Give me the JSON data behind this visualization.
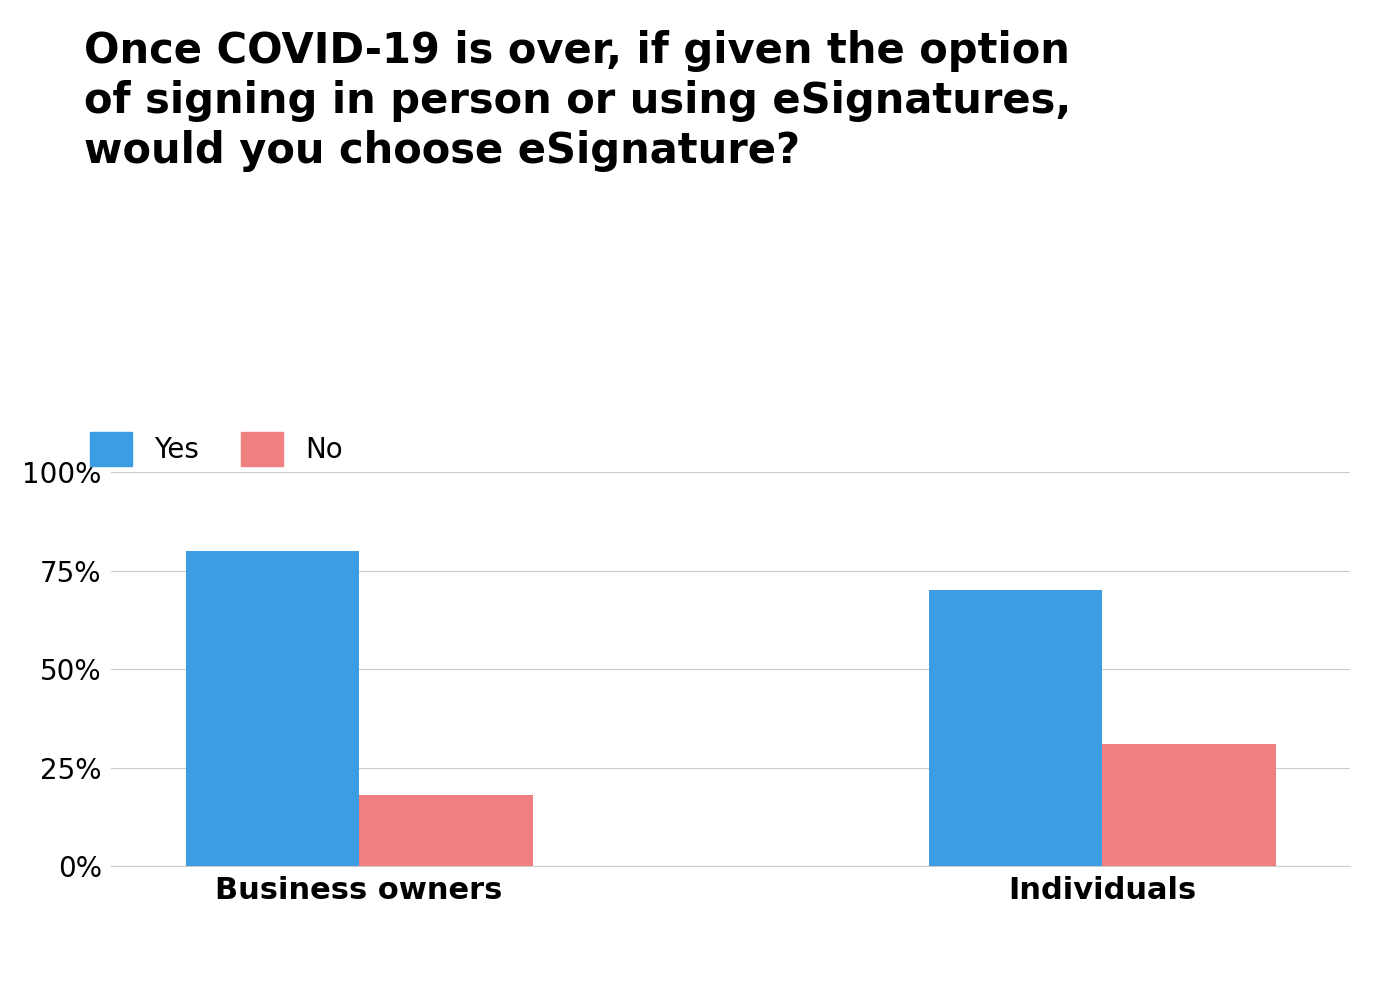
{
  "title_line1": "Once COVID-19 is over, if given the option",
  "title_line2": "of signing in person or using eSignatures,",
  "title_line3": "would you choose eSignature?",
  "categories": [
    "Business owners",
    "Individuals"
  ],
  "yes_values": [
    80,
    70
  ],
  "no_values": [
    18,
    31
  ],
  "yes_color": "#3d9de3",
  "no_color": "#f07f80",
  "ylim": [
    0,
    100
  ],
  "yticks": [
    0,
    25,
    50,
    75,
    100
  ],
  "ytick_labels": [
    "0%",
    "25%",
    "50%",
    "75%",
    "100%"
  ],
  "legend_yes": "Yes",
  "legend_no": "No",
  "bar_width": 0.28,
  "background_color": "#ffffff",
  "title_fontsize": 30,
  "axis_label_fontsize": 22,
  "legend_fontsize": 20,
  "tick_fontsize": 20
}
